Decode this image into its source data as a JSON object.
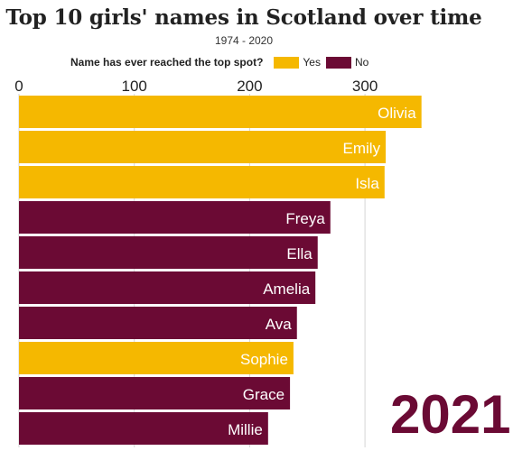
{
  "title": "Top 10 girls' names in Scotland over time",
  "subtitle": "1974 - 2020",
  "legend": {
    "title": "Name has ever reached the top spot?",
    "yes_label": "Yes",
    "no_label": "No",
    "yes_color": "#f5b800",
    "no_color": "#6b0a34"
  },
  "year": "2021",
  "chart_data": {
    "type": "bar",
    "orientation": "horizontal",
    "xlim": [
      0,
      370
    ],
    "xticks": [
      0,
      100,
      200,
      300
    ],
    "grid": true,
    "legend_position": "top",
    "categories": [
      "Olivia",
      "Emily",
      "Isla",
      "Freya",
      "Ella",
      "Amelia",
      "Ava",
      "Sophie",
      "Grace",
      "Millie"
    ],
    "values": [
      349,
      318,
      317,
      270,
      259,
      257,
      241,
      238,
      235,
      216
    ],
    "reached_top_spot": [
      true,
      true,
      true,
      false,
      false,
      false,
      false,
      true,
      false,
      false
    ]
  }
}
